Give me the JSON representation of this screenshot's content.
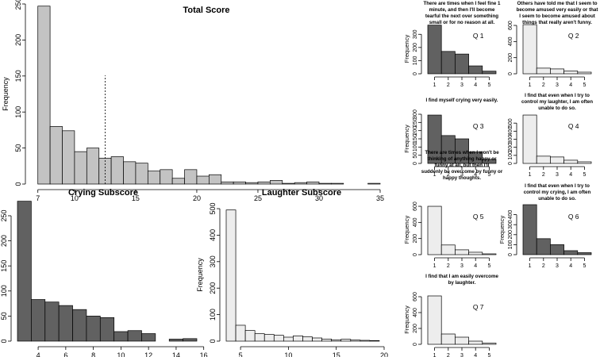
{
  "colors": {
    "dark": "#616161",
    "light_gray": "#c3c3c3",
    "very_light": "#ededed",
    "axis": "#000000"
  },
  "chart_data": [
    {
      "id": "total",
      "type": "bar",
      "title": "Total Score",
      "xlabel": "",
      "ylabel": "Frequency",
      "x_start": 7,
      "bin_width": 1,
      "values": [
        247,
        80,
        74,
        45,
        50,
        36,
        38,
        31,
        29,
        18,
        20,
        8,
        20,
        11,
        13,
        3,
        3,
        2,
        3,
        5,
        1,
        2,
        3,
        1,
        1,
        0,
        0,
        1
      ],
      "xlim": [
        6.5,
        35
      ],
      "ylim": [
        0,
        250
      ],
      "xticks": [
        7,
        10,
        15,
        20,
        25,
        30,
        35
      ],
      "yticks": [
        0,
        50,
        100,
        150,
        200,
        250
      ],
      "vline": 12.5,
      "fill": "light_gray"
    },
    {
      "id": "crying",
      "type": "bar",
      "title": "Crying Subscore",
      "xlabel": "",
      "ylabel": "",
      "x_start": 2.5,
      "bin_width": 1,
      "values": [
        279,
        83,
        78,
        71,
        63,
        50,
        47,
        19,
        21,
        15,
        0,
        4,
        5
      ],
      "xlim": [
        2.5,
        15.5
      ],
      "ylim": [
        0,
        280
      ],
      "xticks": [
        4,
        6,
        8,
        10,
        12,
        14,
        16
      ],
      "yticks": [
        0,
        50,
        100,
        150,
        200,
        250
      ],
      "fill": "dark"
    },
    {
      "id": "laughter",
      "type": "bar",
      "title": "Laughter Subscore",
      "xlabel": "",
      "ylabel": "Frequency",
      "x_start": 3.5,
      "bin_width": 1,
      "values": [
        495,
        60,
        40,
        28,
        25,
        22,
        15,
        20,
        16,
        12,
        8,
        5,
        7,
        4,
        3,
        2
      ],
      "xlim": [
        3.5,
        20
      ],
      "ylim": [
        0,
        500
      ],
      "xticks": [
        5,
        10,
        15,
        20
      ],
      "yticks": [
        0,
        100,
        200,
        300,
        400,
        500
      ],
      "fill": "very_light"
    },
    {
      "id": "q1",
      "type": "bar",
      "label": "Q 1",
      "ylabel": "Frequency",
      "question": [
        "There are times when I feel fine 1",
        "minute, and then I'll become",
        "tearful the next over something",
        "small or for no reason at all."
      ],
      "categories": [
        1,
        2,
        3,
        4,
        5
      ],
      "values": [
        370,
        170,
        150,
        60,
        20
      ],
      "ylim": [
        0,
        380
      ],
      "yticks": [
        0,
        100,
        200,
        300
      ],
      "fill": "dark"
    },
    {
      "id": "q2",
      "type": "bar",
      "label": "Q 2",
      "ylabel": "",
      "question": [
        "Others have told me that I seem to",
        "become amused very easily or that",
        "I seem to become amused about",
        "things that really aren't funny."
      ],
      "categories": [
        1,
        2,
        3,
        4,
        5
      ],
      "values": [
        610,
        70,
        60,
        35,
        20
      ],
      "ylim": [
        0,
        620
      ],
      "yticks": [
        0,
        200,
        400,
        600
      ],
      "fill": "very_light"
    },
    {
      "id": "q3",
      "type": "bar",
      "label": "Q 3",
      "ylabel": "Frequency",
      "question": [
        "I find myself crying very easily."
      ],
      "categories": [
        1,
        2,
        3,
        4,
        5
      ],
      "values": [
        295,
        170,
        150,
        70,
        25
      ],
      "ylim": [
        0,
        300
      ],
      "yticks": [
        0,
        50,
        100,
        150,
        200,
        250,
        300
      ],
      "fill": "dark"
    },
    {
      "id": "q4",
      "type": "bar",
      "label": "Q 4",
      "ylabel": "",
      "question": [
        "I find that even when I try to",
        "control my laughter, I am often",
        "unable to do so."
      ],
      "categories": [
        1,
        2,
        3,
        4,
        5
      ],
      "values": [
        600,
        90,
        80,
        40,
        20
      ],
      "ylim": [
        0,
        610
      ],
      "yticks": [
        0,
        100,
        200,
        300,
        400,
        500
      ],
      "fill": "very_light"
    },
    {
      "id": "q5",
      "type": "bar",
      "label": "Q 5",
      "ylabel": "Frequency",
      "question": [
        "There are times when I won't be",
        "thinking of anything happy or",
        "funny at all, but then I'll",
        "suddenly be overcome by funny or",
        "happy thoughts."
      ],
      "categories": [
        1,
        2,
        3,
        4,
        5
      ],
      "values": [
        600,
        120,
        60,
        30,
        10
      ],
      "ylim": [
        0,
        620
      ],
      "yticks": [
        0,
        200,
        400,
        600
      ],
      "fill": "very_light"
    },
    {
      "id": "q6",
      "type": "bar",
      "label": "Q 6",
      "ylabel": "Frequency",
      "question": [
        "I find that even when I try to",
        "control my crying, I am often",
        "unable to do so."
      ],
      "categories": [
        1,
        2,
        3,
        4,
        5
      ],
      "values": [
        500,
        160,
        100,
        40,
        20
      ],
      "ylim": [
        0,
        500
      ],
      "yticks": [
        0,
        100,
        200,
        300,
        400
      ],
      "fill": "dark"
    },
    {
      "id": "q7",
      "type": "bar",
      "label": "Q 7",
      "ylabel": "Frequency",
      "question": [
        "I find that I am easily overcome",
        "by laughter."
      ],
      "categories": [
        1,
        2,
        3,
        4,
        5
      ],
      "values": [
        610,
        130,
        90,
        40,
        15
      ],
      "ylim": [
        0,
        620
      ],
      "yticks": [
        0,
        200,
        400,
        600
      ],
      "fill": "very_light"
    }
  ]
}
